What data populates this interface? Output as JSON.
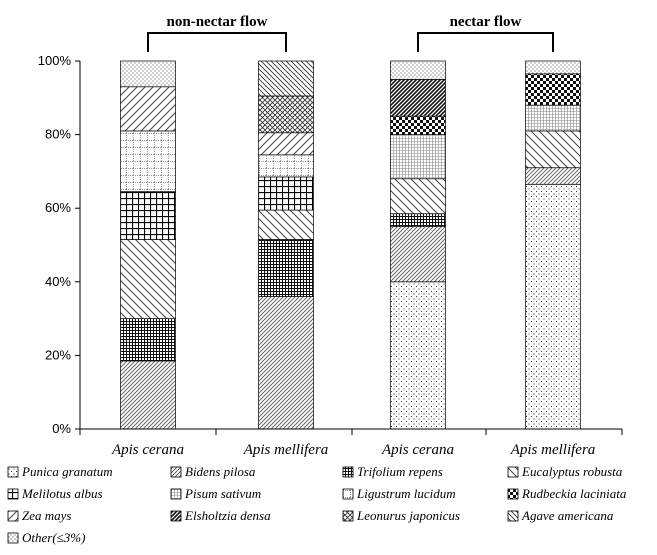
{
  "chart_data": {
    "type": "bar",
    "stacked": true,
    "normalized": true,
    "title": "",
    "xlabel": "",
    "ylabel": "",
    "ylim": [
      0,
      100
    ],
    "yticks": [
      "0%",
      "20%",
      "40%",
      "60%",
      "80%",
      "100%"
    ],
    "grid": false,
    "legend_position": "bottom",
    "categories": [
      "Apis cerana",
      "Apis mellifera",
      "Apis cerana",
      "Apis mellifera"
    ],
    "groups": [
      {
        "label": "non-nectar flow",
        "categories": [
          0,
          1
        ]
      },
      {
        "label": "nectar flow",
        "categories": [
          2,
          3
        ]
      }
    ],
    "series": [
      {
        "name": "Punica granatum",
        "pattern": "dots",
        "values": [
          0,
          0,
          40,
          66.5
        ]
      },
      {
        "name": "Bidens pilosa",
        "pattern": "fine-diagonal",
        "values": [
          18.5,
          36,
          15,
          4.5
        ]
      },
      {
        "name": "Trifolium repens",
        "pattern": "dense-grid",
        "values": [
          11.5,
          15.5,
          3.5,
          0
        ]
      },
      {
        "name": "Eucalyptus robusta",
        "pattern": "wide-backslash",
        "values": [
          21.5,
          8,
          9.5,
          10
        ]
      },
      {
        "name": "Melilotus albus",
        "pattern": "grid",
        "values": [
          13,
          9,
          0,
          0
        ]
      },
      {
        "name": "Pisum sativum",
        "pattern": "fine-grid",
        "values": [
          0,
          0,
          12,
          7
        ]
      },
      {
        "name": "Ligustrum lucidum",
        "pattern": "dotted-grid",
        "values": [
          16.5,
          6,
          0,
          0
        ]
      },
      {
        "name": "Rudbeckia laciniata",
        "pattern": "checker",
        "values": [
          0,
          0,
          5,
          8.5
        ]
      },
      {
        "name": "Zea mays",
        "pattern": "wide-slash",
        "values": [
          12,
          6,
          0,
          0
        ]
      },
      {
        "name": "Elsholtzia densa",
        "pattern": "dense-slash",
        "values": [
          0,
          0,
          10,
          0
        ]
      },
      {
        "name": "Leonurus japonicus",
        "pattern": "crosshatch",
        "values": [
          0,
          10,
          0,
          0
        ]
      },
      {
        "name": "Agave americana",
        "pattern": "backslash",
        "values": [
          0,
          9.5,
          0,
          0
        ]
      },
      {
        "name": "Other(≤3%)",
        "pattern": "sparse-dots",
        "values": [
          7,
          0,
          5,
          3.5
        ]
      }
    ]
  }
}
